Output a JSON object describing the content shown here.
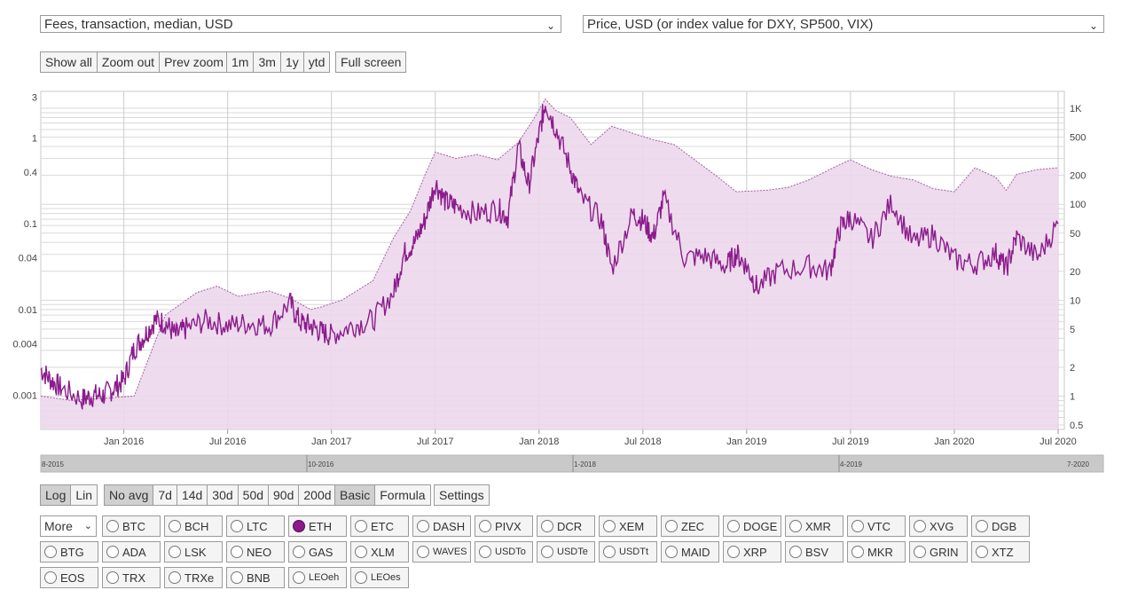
{
  "selectors": {
    "left": "Fees, transaction, median, USD",
    "right": "Price, USD (or index value for DXY, SP500, VIX)"
  },
  "zoom_buttons": [
    "Show all",
    "Zoom out",
    "Prev zoom"
  ],
  "range_buttons": [
    "1m",
    "3m",
    "1y",
    "ytd"
  ],
  "fullscreen_label": "Full screen",
  "scale_buttons": {
    "log": "Log",
    "lin": "Lin",
    "active": "Log"
  },
  "avg_buttons": {
    "items": [
      "No avg",
      "7d",
      "14d",
      "30d",
      "50d",
      "90d",
      "200d"
    ],
    "active": "No avg"
  },
  "mode_buttons": {
    "items": [
      "Basic",
      "Formula"
    ],
    "active": "Basic"
  },
  "settings_label": "Settings",
  "more_select": "More",
  "coins": [
    "BTC",
    "BCH",
    "LTC",
    "ETH",
    "ETC",
    "DASH",
    "PIVX",
    "DCR",
    "XEM",
    "ZEC",
    "DOGE",
    "XMR",
    "VTC",
    "XVG",
    "DGB",
    "BTG",
    "ADA",
    "LSK",
    "NEO",
    "GAS",
    "XLM",
    "WAVES",
    "USDTo",
    "USDTe",
    "USDTt",
    "MAID",
    "XRP",
    "BSV",
    "MKR",
    "GRIN",
    "XTZ",
    "EOS",
    "TRX",
    "TRXe",
    "BNB",
    "LEOeh",
    "LEOes"
  ],
  "selected_coin": "ETH",
  "colors": {
    "series": "#8b1c8b",
    "fill": "#ecd7ec",
    "fill_line": "#a060a0",
    "grid": "#d9d9d9"
  },
  "chart_data": {
    "type": "line",
    "title": "",
    "x_range": [
      "2015-08",
      "2020-07"
    ],
    "x_ticks": [
      "Jan 2016",
      "Jul 2016",
      "Jan 2017",
      "Jul 2017",
      "Jan 2018",
      "Jul 2018",
      "Jan 2019",
      "Jul 2019",
      "Jan 2020",
      "Jul 2020"
    ],
    "y_left": {
      "label": "Fees, transaction, median, USD",
      "scale": "log",
      "ticks": [
        "3",
        "1",
        "0.4",
        "0.1",
        "0.04",
        "0.01",
        "0.004",
        "0.001"
      ],
      "range": [
        0.0004,
        3.5
      ]
    },
    "y_right": {
      "label": "Price, USD",
      "scale": "log",
      "ticks": [
        "1K",
        "500",
        "200",
        "100",
        "50",
        "20",
        "10",
        "5",
        "2",
        "1",
        "0.5"
      ],
      "range": [
        0.45,
        1500
      ]
    },
    "navigator_labels": [
      "8-2015",
      "10-2016",
      "1-2018",
      "4-2019",
      "7-2020"
    ],
    "series": [
      {
        "name": "ETH fees, median, USD",
        "axis": "left",
        "x": [
          2015.6,
          2015.65,
          2015.7,
          2015.8,
          2015.85,
          2015.9,
          2015.95,
          2016.0,
          2016.05,
          2016.1,
          2016.15,
          2016.2,
          2016.25,
          2016.3,
          2016.4,
          2016.5,
          2016.6,
          2016.7,
          2016.8,
          2016.85,
          2016.9,
          2016.95,
          2017.0,
          2017.1,
          2017.2,
          2017.3,
          2017.35,
          2017.4,
          2017.45,
          2017.5,
          2017.55,
          2017.6,
          2017.7,
          2017.8,
          2017.85,
          2017.9,
          2017.95,
          2018.0,
          2018.03,
          2018.08,
          2018.15,
          2018.2,
          2018.3,
          2018.35,
          2018.45,
          2018.5,
          2018.55,
          2018.6,
          2018.7,
          2018.8,
          2018.9,
          2018.95,
          2019.0,
          2019.05,
          2019.15,
          2019.3,
          2019.4,
          2019.45,
          2019.5,
          2019.6,
          2019.7,
          2019.8,
          2019.9,
          2020.0,
          2020.1,
          2020.2,
          2020.25,
          2020.3,
          2020.4,
          2020.5
        ],
        "values": [
          0.002,
          0.0015,
          0.0012,
          0.0009,
          0.001,
          0.001,
          0.0012,
          0.0015,
          0.0035,
          0.005,
          0.0075,
          0.007,
          0.005,
          0.006,
          0.0075,
          0.0065,
          0.007,
          0.0065,
          0.012,
          0.007,
          0.0065,
          0.0055,
          0.005,
          0.0065,
          0.0075,
          0.016,
          0.045,
          0.06,
          0.11,
          0.3,
          0.18,
          0.16,
          0.13,
          0.15,
          0.12,
          0.8,
          0.28,
          1.1,
          2.6,
          1.3,
          0.45,
          0.2,
          0.11,
          0.03,
          0.13,
          0.11,
          0.07,
          0.2,
          0.04,
          0.042,
          0.032,
          0.045,
          0.032,
          0.018,
          0.028,
          0.032,
          0.028,
          0.09,
          0.12,
          0.065,
          0.18,
          0.06,
          0.075,
          0.038,
          0.034,
          0.045,
          0.03,
          0.07,
          0.04,
          0.1
        ]
      },
      {
        "name": "ETH price, USD",
        "axis": "right",
        "style": "area",
        "x": [
          2015.6,
          2015.75,
          2015.9,
          2016.05,
          2016.2,
          2016.35,
          2016.45,
          2016.55,
          2016.7,
          2016.8,
          2016.9,
          2016.95,
          2017.05,
          2017.2,
          2017.3,
          2017.38,
          2017.45,
          2017.5,
          2017.6,
          2017.7,
          2017.8,
          2017.9,
          2017.97,
          2018.03,
          2018.08,
          2018.15,
          2018.25,
          2018.35,
          2018.45,
          2018.55,
          2018.65,
          2018.75,
          2018.85,
          2018.95,
          2019.1,
          2019.2,
          2019.3,
          2019.45,
          2019.5,
          2019.6,
          2019.7,
          2019.8,
          2019.9,
          2020.0,
          2020.1,
          2020.2,
          2020.25,
          2020.3,
          2020.4,
          2020.5
        ],
        "values": [
          1.0,
          0.9,
          0.95,
          1.0,
          7.0,
          12.0,
          14.0,
          11.0,
          12.5,
          10.5,
          8.0,
          8.5,
          10.0,
          16.0,
          45.0,
          85.0,
          200.0,
          350.0,
          300.0,
          330.0,
          290.0,
          440.0,
          750.0,
          1250.0,
          950.0,
          800.0,
          420.0,
          650.0,
          550.0,
          470.0,
          420.0,
          290.0,
          200.0,
          135.0,
          140.0,
          150.0,
          180.0,
          260.0,
          290.0,
          230.0,
          195.0,
          180.0,
          145.0,
          135.0,
          240.0,
          190.0,
          140.0,
          205.0,
          230.0,
          240.0
        ]
      }
    ]
  }
}
